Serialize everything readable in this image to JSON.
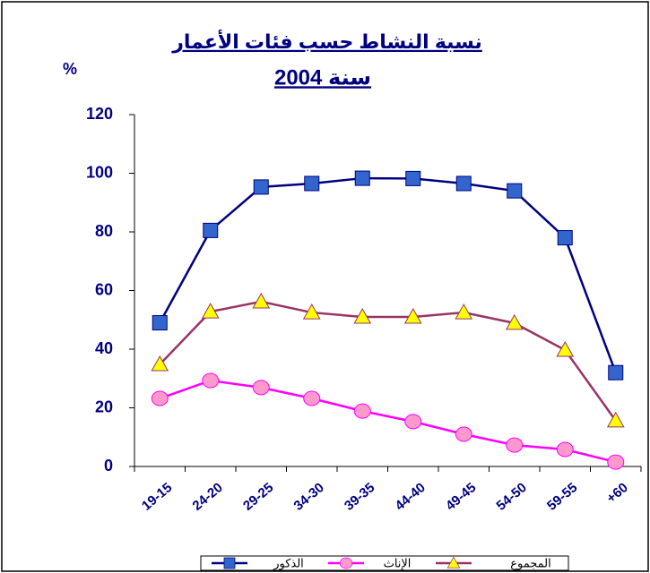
{
  "chart_data": {
    "type": "line",
    "title": "نسبة النشاط حسب فئات الأعمار",
    "subtitle": "سنة 2004",
    "y_label": "%",
    "categories": [
      "19-15",
      "24-20",
      "29-25",
      "34-30",
      "39-35",
      "44-40",
      "49-45",
      "54-50",
      "59-55",
      "+60"
    ],
    "series": [
      {
        "name": "الذكور",
        "color": "#000080",
        "marker": "square",
        "marker_color": "#3366cc",
        "values": [
          49,
          80.5,
          95.3,
          96.5,
          98.3,
          98.2,
          96.5,
          94,
          78,
          32
        ]
      },
      {
        "name": "الإناث",
        "color": "#ff00ff",
        "marker": "circle",
        "marker_color": "#ff99cc",
        "values": [
          23.2,
          29.3,
          26.9,
          23.2,
          18.9,
          15.3,
          11,
          7.3,
          5.8,
          1.5
        ]
      },
      {
        "name": "المجموع",
        "color": "#993366",
        "marker": "triangle",
        "marker_color": "#ffff00",
        "values": [
          34.8,
          52.8,
          56.2,
          52.5,
          51,
          51,
          52.5,
          48.9,
          39.7,
          15.6
        ]
      }
    ],
    "ylim": [
      0,
      120
    ],
    "yticks": [
      0,
      20,
      40,
      60,
      80,
      100,
      120
    ],
    "grid": false,
    "legend": "bottom"
  }
}
